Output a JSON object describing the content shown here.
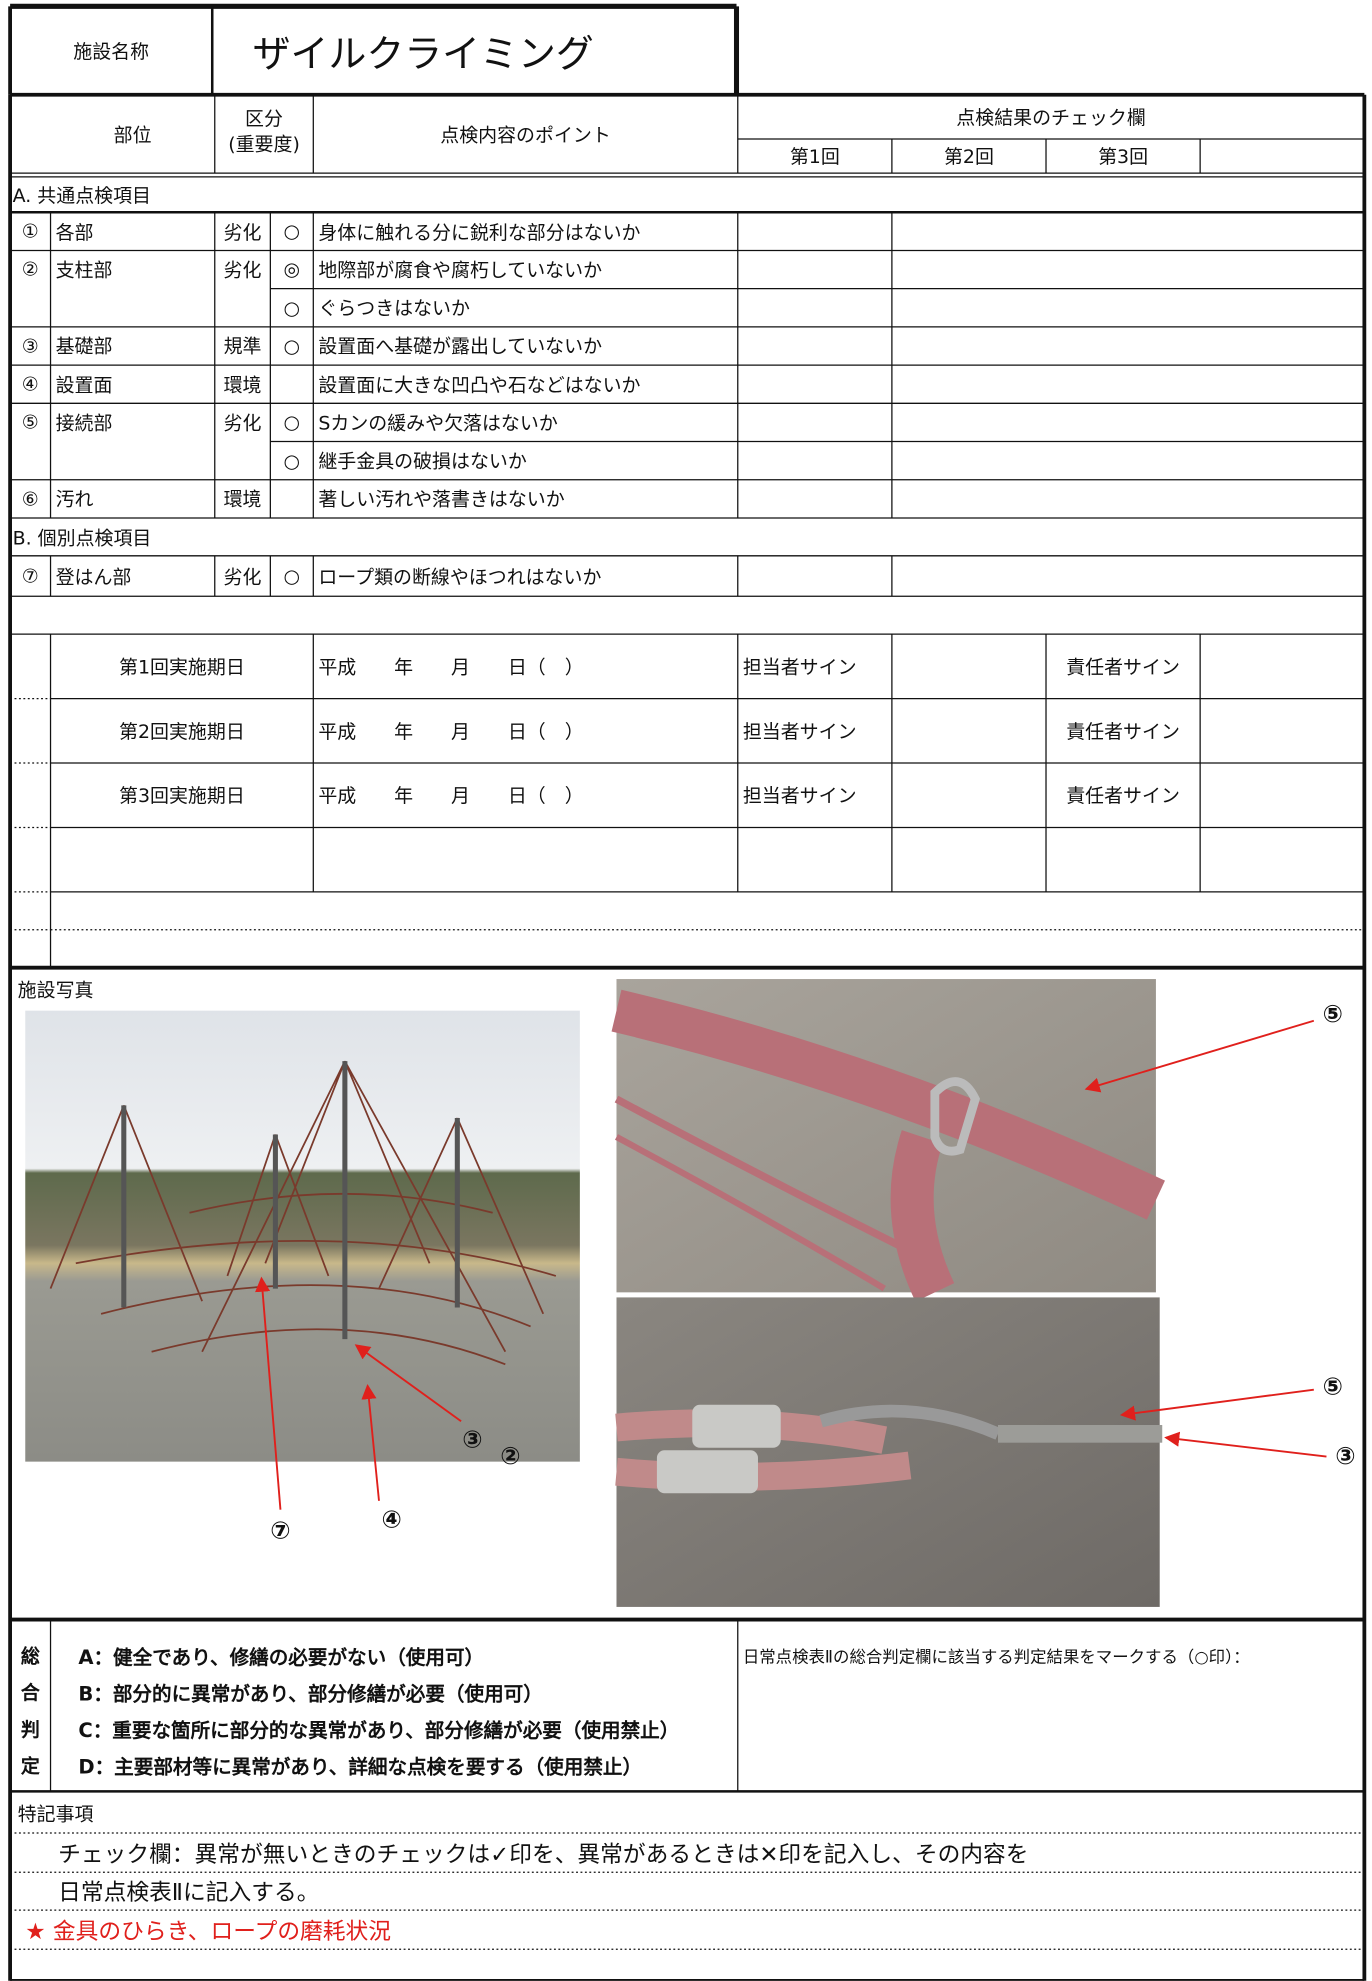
{
  "header": {
    "facility_label": "施設名称",
    "facility_name": "ザイルクライミング"
  },
  "table": {
    "header": {
      "part": "部位",
      "category": "区分",
      "importance": "(重要度)",
      "point": "点検内容のポイント",
      "check": "点検結果のチェック欄",
      "rounds": [
        "第1回",
        "第2回",
        "第3回"
      ]
    },
    "section_a": "A. 共通点検項目",
    "items_a": [
      {
        "no": "①",
        "part": "各部",
        "category": "劣化",
        "importance": "○",
        "point": "身体に触れる分に鋭利な部分はないか"
      },
      {
        "no": "②",
        "part": "支柱部",
        "category": "劣化",
        "importance": "◎",
        "point": "地際部が腐食や腐朽していないか"
      },
      {
        "importance": "○",
        "point": "ぐらつきはないか"
      },
      {
        "no": "③",
        "part": "基礎部",
        "category": "規準",
        "importance": "○",
        "point": "設置面へ基礎が露出していないか"
      },
      {
        "no": "④",
        "part": "設置面",
        "category": "環境",
        "point": "設置面に大きな凹凸や石などはないか"
      },
      {
        "no": "⑤",
        "part": "接続部",
        "category": "劣化",
        "importance": "○",
        "point": "Sカンの緩みや欠落はないか"
      },
      {
        "importance": "○",
        "point": "継手金具の破損はないか"
      },
      {
        "no": "⑥",
        "part": "汚れ",
        "category": "環境",
        "point": "著しい汚れや落書きはないか"
      }
    ],
    "section_b": "B. 個別点検項目",
    "items_b": [
      {
        "no": "⑦",
        "part": "登はん部",
        "category": "劣化",
        "importance": "○",
        "point": "ロープ類の断線やほつれはないか"
      }
    ]
  },
  "dates": {
    "rows": [
      {
        "label": "第1回実施期日",
        "date": "平成　　年　　月　　日（　）",
        "staff": "担当者サイン",
        "manager": "責任者サイン"
      },
      {
        "label": "第2回実施期日",
        "date": "平成　　年　　月　　日（　）",
        "staff": "担当者サイン",
        "manager": "責任者サイン"
      },
      {
        "label": "第3回実施期日",
        "date": "平成　　年　　月　　日（　）",
        "staff": "担当者サイン",
        "manager": "責任者サイン"
      }
    ]
  },
  "photos": {
    "label": "施設写真",
    "callouts": [
      "③",
      "②",
      "④",
      "⑦",
      "⑤",
      "⑤",
      "③"
    ]
  },
  "judgement": {
    "label": [
      "総",
      "合",
      "判",
      "定"
    ],
    "options": [
      "A：健全であり、修繕の必要がない（使用可）",
      "B：部分的に異常があり、部分修繕が必要（使用可）",
      "C：重要な箇所に部分的な異常があり、部分修繕が必要（使用禁止）",
      "D：主要部材等に異常があり、詳細な点検を要する（使用禁止）"
    ],
    "note": "日常点検表Ⅱの総合判定欄に該当する判定結果をマークする（○印）："
  },
  "remarks": {
    "title": "特記事項",
    "lines": [
      "チェック欄：異常が無いときのチェックは✓印を、異常があるときは✕印を記入し、その内容を",
      "日常点検表Ⅱに記入する。"
    ],
    "star": "★ 金具のひらき、ロープの磨耗状況"
  }
}
